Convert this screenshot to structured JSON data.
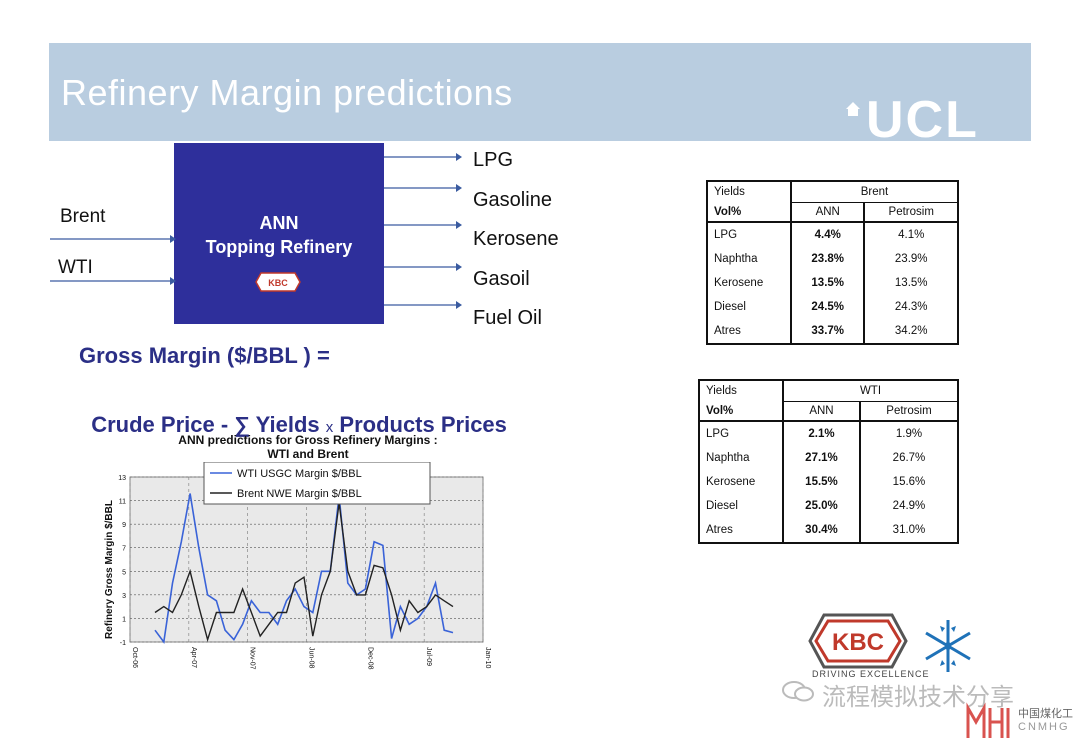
{
  "header": {
    "title": "Refinery Margin predictions",
    "logo": "UCL"
  },
  "diagram": {
    "box_title": "ANN\nTopping Refinery",
    "box_logo": "KBC",
    "box_logo_sub": "DRIVING EXCELLENCE",
    "inputs": [
      "Brent",
      "WTI"
    ],
    "outputs": [
      "LPG",
      "Gasoline",
      "Kerosene",
      "Gasoil",
      "Fuel Oil"
    ]
  },
  "formula": {
    "line1": "Gross Margin ($/BBL ) =",
    "line2_a": "Crude Price - ∑ Yields ",
    "line2_x": "x",
    "line2_b": " Products Prices"
  },
  "tables": [
    {
      "h1": "Yields",
      "h2": "Vol%",
      "crude": "Brent",
      "c1": "ANN",
      "c2": "Petrosim",
      "rows": [
        {
          "name": "LPG",
          "ann": "4.4%",
          "petrosim": "4.1%"
        },
        {
          "name": "Naphtha",
          "ann": "23.8%",
          "petrosim": "23.9%"
        },
        {
          "name": "Kerosene",
          "ann": "13.5%",
          "petrosim": "13.5%"
        },
        {
          "name": "Diesel",
          "ann": "24.5%",
          "petrosim": "24.3%"
        },
        {
          "name": "Atres",
          "ann": "33.7%",
          "petrosim": "34.2%"
        }
      ]
    },
    {
      "h1": "Yields",
      "h2": "Vol%",
      "crude": "WTI",
      "c1": "ANN",
      "c2": "Petrosim",
      "rows": [
        {
          "name": "LPG",
          "ann": "2.1%",
          "petrosim": "1.9%"
        },
        {
          "name": "Naphtha",
          "ann": "27.1%",
          "petrosim": "26.7%"
        },
        {
          "name": "Kerosene",
          "ann": "15.5%",
          "petrosim": "15.6%"
        },
        {
          "name": "Diesel",
          "ann": "25.0%",
          "petrosim": "24.9%"
        },
        {
          "name": "Atres",
          "ann": "30.4%",
          "petrosim": "31.0%"
        }
      ]
    }
  ],
  "chart_data": {
    "type": "line",
    "title": "ANN predictions for Gross Refinery Margins :\nWTI and Brent",
    "ylabel": "Refinery Gross Margin $/BBL",
    "xlabel": "",
    "ylim": [
      -1,
      13
    ],
    "yticks": [
      -1,
      1,
      3,
      5,
      7,
      9,
      11,
      13
    ],
    "xticks": [
      "Oct-06",
      "Apr-07",
      "Nov-07",
      "Jun-08",
      "Dec-08",
      "Jul-09",
      "Jan-10"
    ],
    "grid": true,
    "legend_position": "top",
    "series": [
      {
        "name": "WTI   USGC Margin $/BBL",
        "color": "#3a63d8",
        "values": [
          0,
          -1,
          4,
          7.5,
          11.6,
          7,
          3,
          2.5,
          0,
          -0.8,
          0.5,
          2.5,
          1.5,
          1.5,
          0.5,
          2.5,
          3.5,
          2,
          1.5,
          5,
          5,
          11.4,
          4,
          3,
          3.5,
          7.5,
          7.2,
          -0.7,
          2,
          0.5,
          1,
          2,
          4,
          0,
          -0.2
        ]
      },
      {
        "name": "Brent NWE Margin $/BBL",
        "color": "#222222",
        "values": [
          1.5,
          2,
          1.5,
          3,
          5,
          2,
          -0.8,
          1.5,
          1.5,
          1.5,
          3.5,
          1.5,
          -0.5,
          0.5,
          1.5,
          1.5,
          4,
          4.5,
          -0.5,
          3,
          5,
          10.8,
          5,
          3,
          3,
          5.5,
          5.3,
          3,
          0,
          2.5,
          1.5,
          2,
          3,
          2.5,
          2
        ]
      }
    ]
  },
  "footer": {
    "kbc_logo": "KBC",
    "kbc_tagline": "DRIVING EXCELLENCE",
    "watermark": "流程模拟技术分享",
    "cnmhg_cn": "中国煤化工",
    "cnmhg_en": "CNMHG"
  }
}
